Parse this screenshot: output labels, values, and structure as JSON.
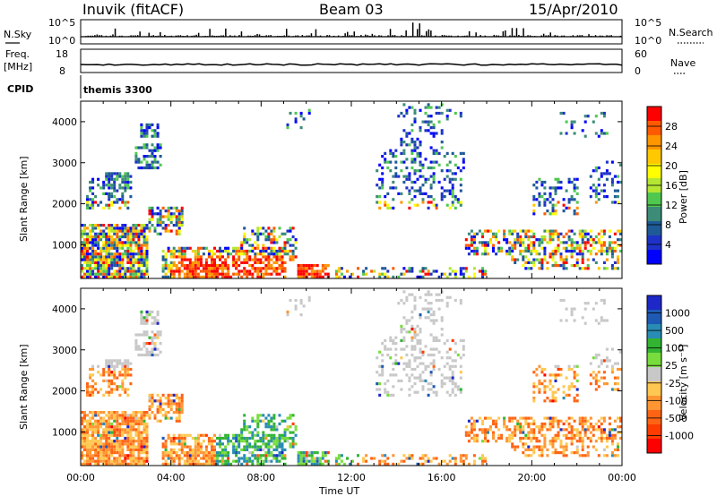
{
  "header": {
    "station": "Inuvik (fitACF)",
    "beam": "Beam 03",
    "date": "15/Apr/2010"
  },
  "summary": {
    "nsky_label": "N.Sky",
    "nsky_ticks": [
      "10^5",
      "10^0"
    ],
    "nsearch_label": "N.Search",
    "nsearch_ticks": [
      "10^5",
      "10^0"
    ],
    "freq_label_1": "Freq.",
    "freq_label_2": "[MHz]",
    "freq_ticks": [
      "18",
      "8"
    ],
    "nave_label": "Nave",
    "nave_ticks": [
      "60",
      "0"
    ],
    "cpid_label": "CPID",
    "cpid_value": "themis 3300"
  },
  "chart_data": [
    {
      "type": "heatmap",
      "title": "",
      "xlabel": "",
      "ylabel": "Slant Range [km]",
      "x_ticks": [
        "00:00",
        "04:00",
        "08:00",
        "12:00",
        "16:00",
        "20:00",
        "00:00"
      ],
      "xlim_hours": [
        0,
        24
      ],
      "ylim_km": [
        180,
        4500
      ],
      "y_ticks": [
        1000,
        2000,
        3000,
        4000
      ],
      "colorbar": {
        "label": "Power [dB]",
        "ticks": [
          "28",
          "24",
          "20",
          "16",
          "12",
          "8",
          "4"
        ],
        "colors": [
          "#ff0000",
          "#ff5a00",
          "#ff9600",
          "#ffc800",
          "#ffff00",
          "#b4e632",
          "#50c850",
          "#3c8c78",
          "#1e5a96",
          "#1e32c8",
          "#0000ff"
        ]
      }
    },
    {
      "type": "heatmap",
      "title": "",
      "xlabel": "Time UT",
      "ylabel": "Slant Range [km]",
      "x_ticks": [
        "00:00",
        "04:00",
        "08:00",
        "12:00",
        "16:00",
        "20:00",
        "00:00"
      ],
      "xlim_hours": [
        0,
        24
      ],
      "ylim_km": [
        180,
        4500
      ],
      "y_ticks": [
        1000,
        2000,
        3000,
        4000
      ],
      "colorbar": {
        "label": "Velocity [m s⁻¹]",
        "ticks": [
          "1000",
          "500",
          "100",
          "25",
          "-25",
          "-100",
          "-500",
          "-1000"
        ],
        "colors": [
          "#1e28c8",
          "#1e5ab4",
          "#288cb4",
          "#32b432",
          "#78dc3c",
          "#c8c8c8",
          "#ffc850",
          "#ff9632",
          "#ff6414",
          "#ff3c00",
          "#ff0000"
        ]
      }
    }
  ]
}
